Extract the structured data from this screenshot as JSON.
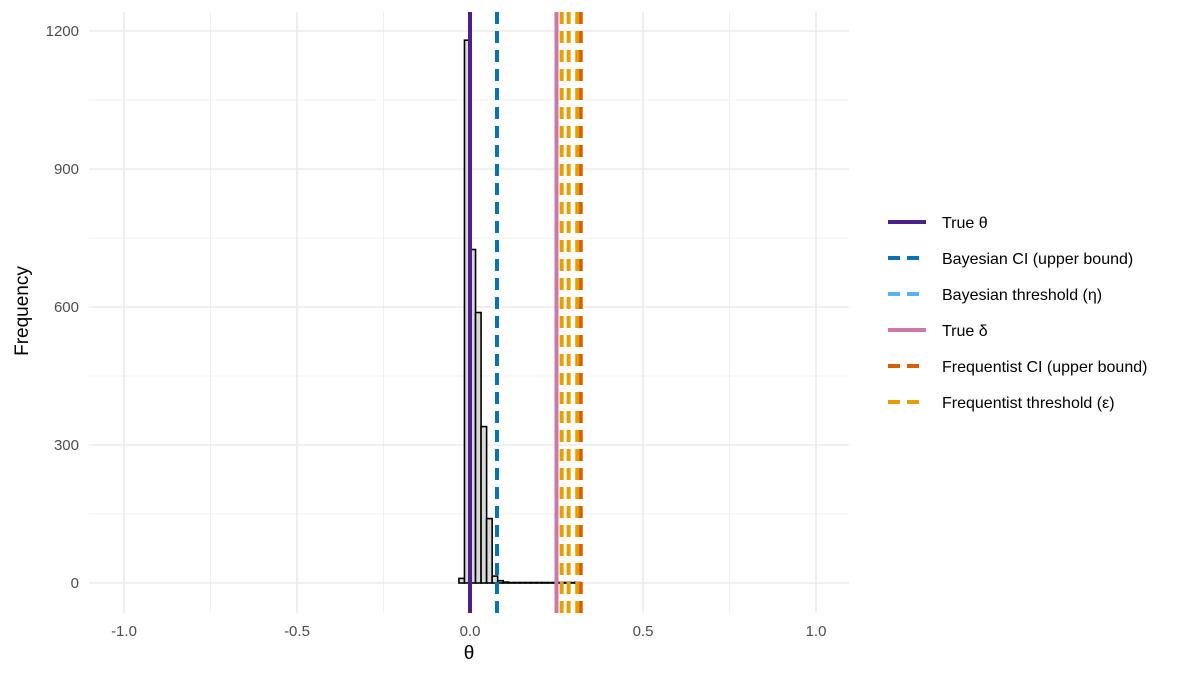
{
  "chart_data": {
    "type": "bar",
    "subtype": "histogram",
    "xlabel": "θ",
    "ylabel": "Frequency",
    "xlim": [
      -1.1,
      1.1
    ],
    "ylim": [
      -100,
      1230
    ],
    "x_ticks": [
      -1.0,
      -0.5,
      0.0,
      0.5,
      1.0
    ],
    "x_tick_labels": [
      "-1.0",
      "-0.5",
      "0.0",
      "0.5",
      "1.0"
    ],
    "y_ticks": [
      0,
      300,
      600,
      900,
      1200
    ],
    "y_tick_labels": [
      "0",
      "300",
      "600",
      "900",
      "1200"
    ],
    "grid": true,
    "legend_position": "right",
    "histogram": {
      "bin_width": 0.016,
      "fill": "#d9d9d9",
      "outline": "#000000",
      "bins": [
        {
          "x0": -0.032,
          "count": 10
        },
        {
          "x0": -0.016,
          "count": 1180
        },
        {
          "x0": 0.0,
          "count": 725
        },
        {
          "x0": 0.016,
          "count": 588
        },
        {
          "x0": 0.032,
          "count": 340
        },
        {
          "x0": 0.048,
          "count": 140
        },
        {
          "x0": 0.064,
          "count": 15
        },
        {
          "x0": 0.08,
          "count": 5
        },
        {
          "x0": 0.096,
          "count": 2
        },
        {
          "x0": 0.112,
          "count": 1
        },
        {
          "x0": 0.128,
          "count": 1
        },
        {
          "x0": 0.144,
          "count": 1
        },
        {
          "x0": 0.16,
          "count": 1
        },
        {
          "x0": 0.176,
          "count": 1
        },
        {
          "x0": 0.192,
          "count": 1
        },
        {
          "x0": 0.208,
          "count": 1
        },
        {
          "x0": 0.224,
          "count": 1
        },
        {
          "x0": 0.24,
          "count": 1
        },
        {
          "x0": 0.256,
          "count": 1
        },
        {
          "x0": 0.272,
          "count": 1
        },
        {
          "x0": 0.288,
          "count": 1
        },
        {
          "x0": 0.304,
          "count": 1
        }
      ]
    },
    "reference_lines": [
      {
        "name": "True θ",
        "x": 0.0,
        "style": "solid",
        "color": "#4b1f8c"
      },
      {
        "name": "Bayesian CI (upper bound)",
        "x": 0.078,
        "style": "dashed",
        "color": "#0a72b0"
      },
      {
        "name": "Bayesian threshold (η)",
        "x": 0.078,
        "style": "dashed",
        "color": "#56b4e9",
        "hidden_in_plot": true
      },
      {
        "name": "True δ",
        "x": 0.25,
        "style": "solid",
        "color": "#cc79a7"
      },
      {
        "name": "Frequentist CI (upper bound)",
        "x": 0.32,
        "style": "dashed",
        "color": "#d55e00"
      },
      {
        "name": "Frequentist threshold (ε)",
        "x": [
          0.265,
          0.285,
          0.31
        ],
        "style": "dashed",
        "color": "#e69f00"
      }
    ],
    "legend": [
      {
        "label": "True θ",
        "color": "#4b1f8c",
        "style": "solid"
      },
      {
        "label": "Bayesian CI (upper bound)",
        "color": "#0a72b0",
        "style": "dashed"
      },
      {
        "label": "Bayesian threshold (η)",
        "color": "#56b4e9",
        "style": "dashed"
      },
      {
        "label": "True δ",
        "color": "#cc79a7",
        "style": "solid"
      },
      {
        "label": "Frequentist CI (upper bound)",
        "color": "#d55e00",
        "style": "dashed"
      },
      {
        "label": "Frequentist threshold (ε)",
        "color": "#e69f00",
        "style": "dashed"
      }
    ]
  }
}
